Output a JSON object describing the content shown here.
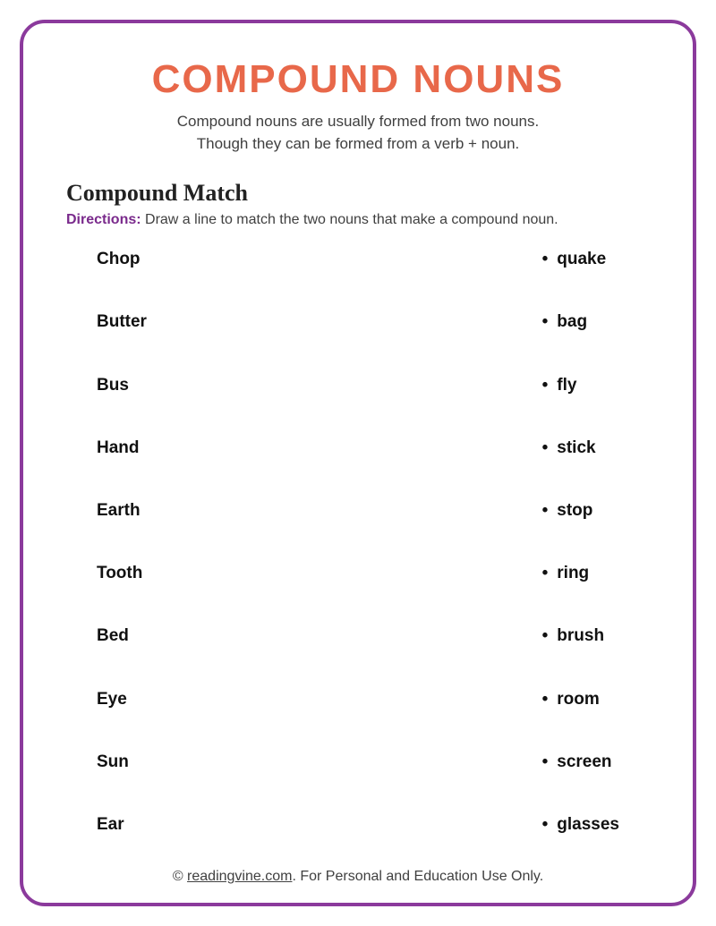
{
  "colors": {
    "border": "#8b3a9c",
    "title": "#e8684a",
    "body_text": "#3f3f3f",
    "directions_label": "#7a2a8c",
    "item_text": "#111111",
    "background": "#ffffff"
  },
  "title": "COMPOUND NOUNS",
  "intro_line1": "Compound nouns are usually formed from two nouns.",
  "intro_line2": "Though they can be formed from a verb + noun.",
  "subheading": "Compound Match",
  "directions_label": "Directions:",
  "directions_text": " Draw a line to match the two nouns that make a compound noun.",
  "left_column": [
    "Chop",
    "Butter",
    "Bus",
    "Hand",
    "Earth",
    "Tooth",
    "Bed",
    "Eye",
    "Sun",
    "Ear"
  ],
  "right_column": [
    "quake",
    "bag",
    "fly",
    "stick",
    "stop",
    "ring",
    "brush",
    "room",
    "screen",
    "glasses"
  ],
  "footer_prefix": "© ",
  "footer_link": "readingvine.com",
  "footer_suffix": ". For Personal and Education Use Only."
}
